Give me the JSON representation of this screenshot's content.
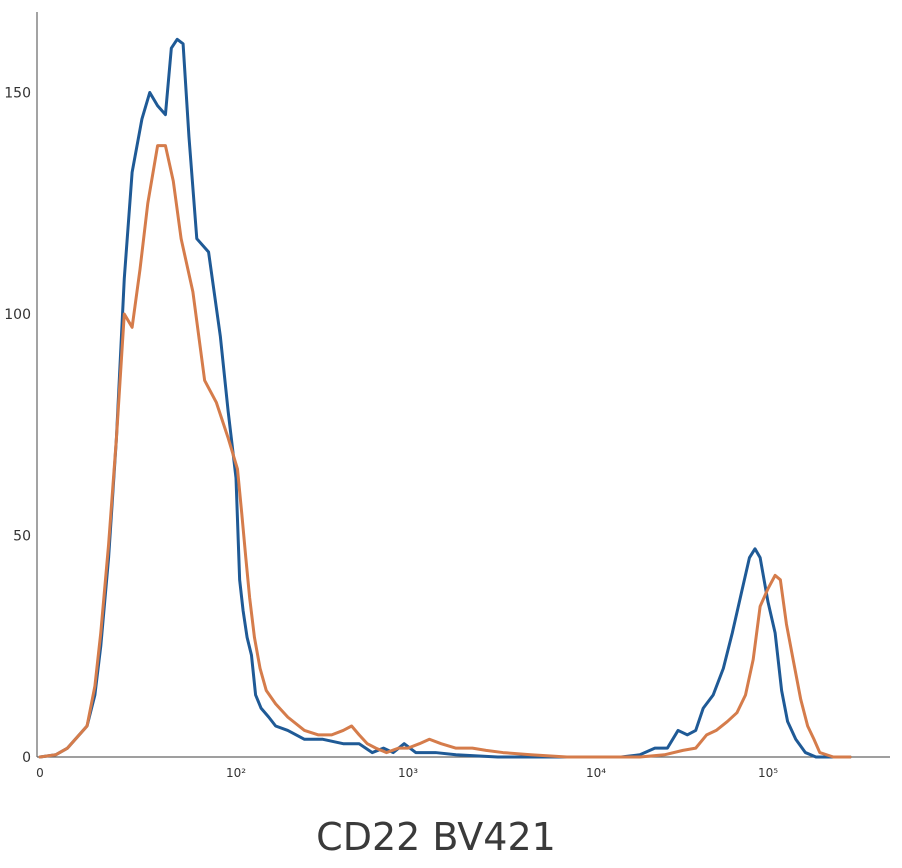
{
  "chart_data": {
    "type": "line",
    "title": "",
    "xlabel": "CD22 BV421",
    "ylabel": "",
    "xscale": "biexponential (log above ~100)",
    "xlim": [
      0,
      300000
    ],
    "ylim": [
      0,
      165
    ],
    "grid": false,
    "legend": "none",
    "x_ticks": [
      {
        "value": 0,
        "label": "0"
      },
      {
        "value": 100,
        "label": "10²"
      },
      {
        "value": 1000,
        "label": "10³"
      },
      {
        "value": 10000,
        "label": "10⁴"
      },
      {
        "value": 100000,
        "label": "10⁵"
      }
    ],
    "y_ticks": [
      {
        "value": 0,
        "label": "0"
      },
      {
        "value": 50,
        "label": "50"
      },
      {
        "value": 100,
        "label": "100"
      },
      {
        "value": 150,
        "label": "150"
      }
    ],
    "series": [
      {
        "color": "#1f5a96",
        "points": [
          [
            0,
            0
          ],
          [
            8,
            0.5
          ],
          [
            14,
            2
          ],
          [
            20,
            5
          ],
          [
            24,
            7
          ],
          [
            28,
            14
          ],
          [
            31,
            25
          ],
          [
            35,
            45
          ],
          [
            39,
            72
          ],
          [
            43,
            108
          ],
          [
            47,
            132
          ],
          [
            52,
            144
          ],
          [
            56,
            150
          ],
          [
            60,
            147
          ],
          [
            64,
            145
          ],
          [
            67,
            160
          ],
          [
            70,
            162
          ],
          [
            73,
            161
          ],
          [
            76,
            140
          ],
          [
            80,
            117
          ],
          [
            86,
            114
          ],
          [
            92,
            95
          ],
          [
            96,
            78
          ],
          [
            100,
            63
          ],
          [
            105,
            40
          ],
          [
            110,
            33
          ],
          [
            116,
            27
          ],
          [
            123,
            23
          ],
          [
            130,
            14
          ],
          [
            140,
            11
          ],
          [
            155,
            9
          ],
          [
            170,
            7
          ],
          [
            200,
            6
          ],
          [
            250,
            4
          ],
          [
            320,
            4
          ],
          [
            420,
            3
          ],
          [
            520,
            3
          ],
          [
            620,
            1
          ],
          [
            720,
            2
          ],
          [
            820,
            1
          ],
          [
            950,
            3
          ],
          [
            1100,
            1
          ],
          [
            1400,
            1
          ],
          [
            1800,
            0.5
          ],
          [
            3000,
            0
          ],
          [
            6000,
            0
          ],
          [
            10000,
            0
          ],
          [
            14000,
            0
          ],
          [
            18000,
            0.5
          ],
          [
            22000,
            2
          ],
          [
            26000,
            2
          ],
          [
            30000,
            6
          ],
          [
            34000,
            5
          ],
          [
            38000,
            6
          ],
          [
            42000,
            11
          ],
          [
            48000,
            14
          ],
          [
            55000,
            20
          ],
          [
            62000,
            28
          ],
          [
            70000,
            37
          ],
          [
            78000,
            45
          ],
          [
            84000,
            47
          ],
          [
            90000,
            45
          ],
          [
            100000,
            35
          ],
          [
            110000,
            28
          ],
          [
            120000,
            15
          ],
          [
            130000,
            8
          ],
          [
            145000,
            4
          ],
          [
            165000,
            1
          ],
          [
            190000,
            0
          ],
          [
            240000,
            0
          ],
          [
            300000,
            0
          ]
        ]
      },
      {
        "color": "#d57c4b",
        "points": [
          [
            0,
            0
          ],
          [
            8,
            0.5
          ],
          [
            14,
            2
          ],
          [
            20,
            5
          ],
          [
            24,
            7
          ],
          [
            28,
            16
          ],
          [
            31,
            28
          ],
          [
            35,
            48
          ],
          [
            39,
            72
          ],
          [
            43,
            100
          ],
          [
            47,
            97
          ],
          [
            51,
            110
          ],
          [
            55,
            125
          ],
          [
            60,
            138
          ],
          [
            64,
            138
          ],
          [
            68,
            130
          ],
          [
            72,
            117
          ],
          [
            78,
            105
          ],
          [
            84,
            85
          ],
          [
            90,
            80
          ],
          [
            96,
            72
          ],
          [
            102,
            65
          ],
          [
            108,
            55
          ],
          [
            114,
            45
          ],
          [
            120,
            36
          ],
          [
            128,
            27
          ],
          [
            138,
            20
          ],
          [
            150,
            15
          ],
          [
            170,
            12
          ],
          [
            200,
            9
          ],
          [
            250,
            6
          ],
          [
            300,
            5
          ],
          [
            360,
            5
          ],
          [
            420,
            6
          ],
          [
            470,
            7
          ],
          [
            520,
            5
          ],
          [
            580,
            3
          ],
          [
            650,
            2
          ],
          [
            750,
            1
          ],
          [
            880,
            2
          ],
          [
            1000,
            2
          ],
          [
            1150,
            3
          ],
          [
            1300,
            4
          ],
          [
            1500,
            3
          ],
          [
            1800,
            2
          ],
          [
            2200,
            2
          ],
          [
            2600,
            1.5
          ],
          [
            3200,
            1
          ],
          [
            4500,
            0.5
          ],
          [
            7000,
            0
          ],
          [
            12000,
            0
          ],
          [
            18000,
            0
          ],
          [
            25000,
            0.5
          ],
          [
            32000,
            1.5
          ],
          [
            38000,
            2
          ],
          [
            44000,
            5
          ],
          [
            50000,
            6
          ],
          [
            58000,
            8
          ],
          [
            66000,
            10
          ],
          [
            74000,
            14
          ],
          [
            82000,
            22
          ],
          [
            90000,
            34
          ],
          [
            100000,
            38
          ],
          [
            110000,
            41
          ],
          [
            118000,
            40
          ],
          [
            128000,
            30
          ],
          [
            140000,
            22
          ],
          [
            155000,
            13
          ],
          [
            170000,
            7
          ],
          [
            185000,
            4
          ],
          [
            200000,
            1
          ],
          [
            240000,
            0
          ],
          [
            300000,
            0
          ]
        ]
      }
    ]
  }
}
